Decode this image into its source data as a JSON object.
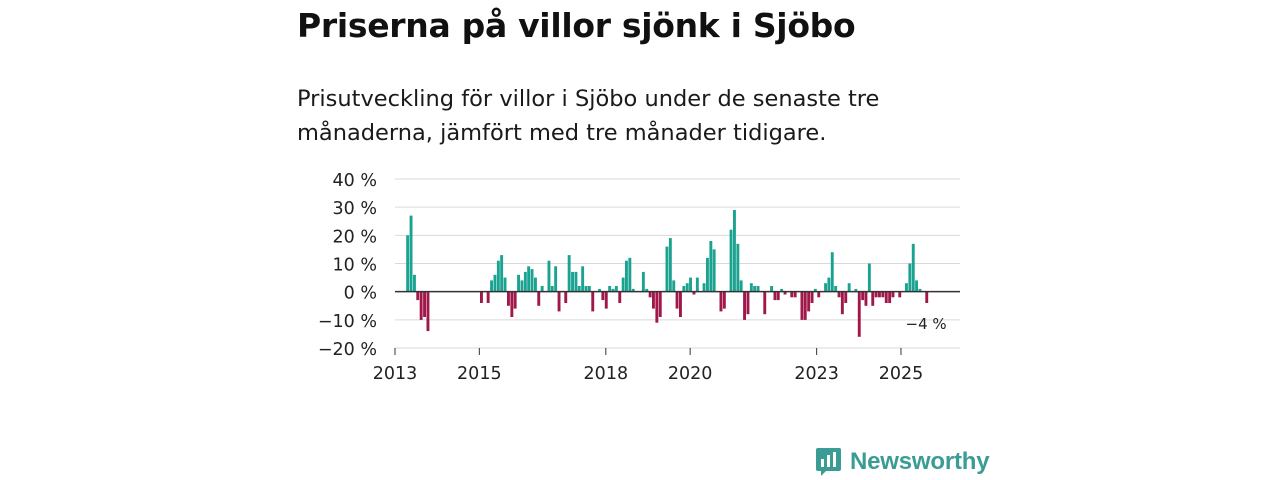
{
  "header": {
    "title": "Priserna på villor sjönk i Sjöbo",
    "subtitle": "Prisutveckling för villor i Sjöbo under de senaste tre månaderna, jämfört med tre månader tidigare."
  },
  "chart_data": {
    "type": "bar",
    "ylabel": "",
    "xlabel": "",
    "ylim": [
      -20,
      40
    ],
    "yticks": [
      40,
      30,
      20,
      10,
      0,
      -10,
      -20
    ],
    "ytick_labels": [
      "40 %",
      "30 %",
      "20 %",
      "10 %",
      "0 %",
      "−10 %",
      "−20 %"
    ],
    "x_start": 2013.0,
    "x_end": 2026.4,
    "xticks": [
      2013,
      2015,
      2018,
      2020,
      2023,
      2025
    ],
    "xtick_labels": [
      "2013",
      "2015",
      "2018",
      "2020",
      "2023",
      "2025"
    ],
    "grid": true,
    "positive_color": "#1ba392",
    "negative_color": "#a0174a",
    "annotation": "−4 %",
    "annotation_value": -4,
    "bars": [
      {
        "x": 2013.3,
        "v": 20
      },
      {
        "x": 2013.38,
        "v": 27
      },
      {
        "x": 2013.46,
        "v": 6
      },
      {
        "x": 2013.54,
        "v": -3
      },
      {
        "x": 2013.62,
        "v": -10
      },
      {
        "x": 2013.7,
        "v": -9
      },
      {
        "x": 2013.78,
        "v": -14
      },
      {
        "x": 2015.05,
        "v": -4
      },
      {
        "x": 2015.21,
        "v": -4
      },
      {
        "x": 2015.29,
        "v": 4
      },
      {
        "x": 2015.37,
        "v": 6
      },
      {
        "x": 2015.45,
        "v": 11
      },
      {
        "x": 2015.53,
        "v": 13
      },
      {
        "x": 2015.61,
        "v": 5
      },
      {
        "x": 2015.69,
        "v": -5
      },
      {
        "x": 2015.77,
        "v": -9
      },
      {
        "x": 2015.85,
        "v": -6
      },
      {
        "x": 2015.93,
        "v": 6
      },
      {
        "x": 2016.01,
        "v": 4
      },
      {
        "x": 2016.09,
        "v": 7
      },
      {
        "x": 2016.17,
        "v": 9
      },
      {
        "x": 2016.25,
        "v": 8
      },
      {
        "x": 2016.33,
        "v": 5
      },
      {
        "x": 2016.41,
        "v": -5
      },
      {
        "x": 2016.49,
        "v": 2
      },
      {
        "x": 2016.65,
        "v": 11
      },
      {
        "x": 2016.73,
        "v": 2
      },
      {
        "x": 2016.81,
        "v": 9
      },
      {
        "x": 2016.89,
        "v": -7
      },
      {
        "x": 2017.05,
        "v": -4
      },
      {
        "x": 2017.13,
        "v": 13
      },
      {
        "x": 2017.21,
        "v": 7
      },
      {
        "x": 2017.29,
        "v": 7
      },
      {
        "x": 2017.37,
        "v": 2
      },
      {
        "x": 2017.45,
        "v": 9
      },
      {
        "x": 2017.53,
        "v": 2
      },
      {
        "x": 2017.61,
        "v": 2
      },
      {
        "x": 2017.69,
        "v": -7
      },
      {
        "x": 2017.85,
        "v": 1
      },
      {
        "x": 2017.93,
        "v": -3
      },
      {
        "x": 2018.01,
        "v": -6
      },
      {
        "x": 2018.09,
        "v": 2
      },
      {
        "x": 2018.17,
        "v": 1
      },
      {
        "x": 2018.25,
        "v": 2
      },
      {
        "x": 2018.33,
        "v": -4
      },
      {
        "x": 2018.41,
        "v": 5
      },
      {
        "x": 2018.49,
        "v": 11
      },
      {
        "x": 2018.57,
        "v": 12
      },
      {
        "x": 2018.65,
        "v": 1
      },
      {
        "x": 2018.89,
        "v": 7
      },
      {
        "x": 2018.97,
        "v": 1
      },
      {
        "x": 2019.05,
        "v": -2
      },
      {
        "x": 2019.13,
        "v": -6
      },
      {
        "x": 2019.21,
        "v": -11
      },
      {
        "x": 2019.29,
        "v": -9
      },
      {
        "x": 2019.45,
        "v": 16
      },
      {
        "x": 2019.53,
        "v": 19
      },
      {
        "x": 2019.61,
        "v": 4
      },
      {
        "x": 2019.69,
        "v": -6
      },
      {
        "x": 2019.77,
        "v": -9
      },
      {
        "x": 2019.85,
        "v": 2
      },
      {
        "x": 2019.93,
        "v": 3
      },
      {
        "x": 2020.01,
        "v": 5
      },
      {
        "x": 2020.09,
        "v": -1
      },
      {
        "x": 2020.17,
        "v": 5
      },
      {
        "x": 2020.33,
        "v": 3
      },
      {
        "x": 2020.41,
        "v": 12
      },
      {
        "x": 2020.49,
        "v": 18
      },
      {
        "x": 2020.57,
        "v": 15
      },
      {
        "x": 2020.73,
        "v": -7
      },
      {
        "x": 2020.81,
        "v": -6
      },
      {
        "x": 2020.97,
        "v": 22
      },
      {
        "x": 2021.05,
        "v": 29
      },
      {
        "x": 2021.13,
        "v": 17
      },
      {
        "x": 2021.21,
        "v": 4
      },
      {
        "x": 2021.29,
        "v": -10
      },
      {
        "x": 2021.37,
        "v": -8
      },
      {
        "x": 2021.45,
        "v": 3
      },
      {
        "x": 2021.53,
        "v": 2
      },
      {
        "x": 2021.61,
        "v": 2
      },
      {
        "x": 2021.77,
        "v": -8
      },
      {
        "x": 2021.93,
        "v": 2
      },
      {
        "x": 2022.01,
        "v": -3
      },
      {
        "x": 2022.09,
        "v": -3
      },
      {
        "x": 2022.17,
        "v": 1
      },
      {
        "x": 2022.25,
        "v": -1
      },
      {
        "x": 2022.41,
        "v": -2
      },
      {
        "x": 2022.49,
        "v": -2
      },
      {
        "x": 2022.65,
        "v": -10
      },
      {
        "x": 2022.73,
        "v": -10
      },
      {
        "x": 2022.81,
        "v": -7
      },
      {
        "x": 2022.89,
        "v": -4
      },
      {
        "x": 2022.97,
        "v": 1
      },
      {
        "x": 2023.05,
        "v": -2
      },
      {
        "x": 2023.21,
        "v": 3
      },
      {
        "x": 2023.29,
        "v": 5
      },
      {
        "x": 2023.37,
        "v": 14
      },
      {
        "x": 2023.45,
        "v": 2
      },
      {
        "x": 2023.53,
        "v": -2
      },
      {
        "x": 2023.61,
        "v": -8
      },
      {
        "x": 2023.69,
        "v": -4
      },
      {
        "x": 2023.77,
        "v": 3
      },
      {
        "x": 2023.93,
        "v": 1
      },
      {
        "x": 2024.01,
        "v": -16
      },
      {
        "x": 2024.09,
        "v": -3
      },
      {
        "x": 2024.17,
        "v": -5
      },
      {
        "x": 2024.25,
        "v": 10
      },
      {
        "x": 2024.33,
        "v": -5
      },
      {
        "x": 2024.41,
        "v": -2
      },
      {
        "x": 2024.49,
        "v": -2
      },
      {
        "x": 2024.57,
        "v": -2
      },
      {
        "x": 2024.65,
        "v": -4
      },
      {
        "x": 2024.73,
        "v": -4
      },
      {
        "x": 2024.81,
        "v": -2
      },
      {
        "x": 2024.97,
        "v": -2
      },
      {
        "x": 2025.13,
        "v": 3
      },
      {
        "x": 2025.21,
        "v": 10
      },
      {
        "x": 2025.29,
        "v": 17
      },
      {
        "x": 2025.37,
        "v": 4
      },
      {
        "x": 2025.45,
        "v": 1
      },
      {
        "x": 2025.61,
        "v": -4
      }
    ]
  },
  "brand": {
    "name": "Newsworthy",
    "color": "#3a9c95"
  }
}
